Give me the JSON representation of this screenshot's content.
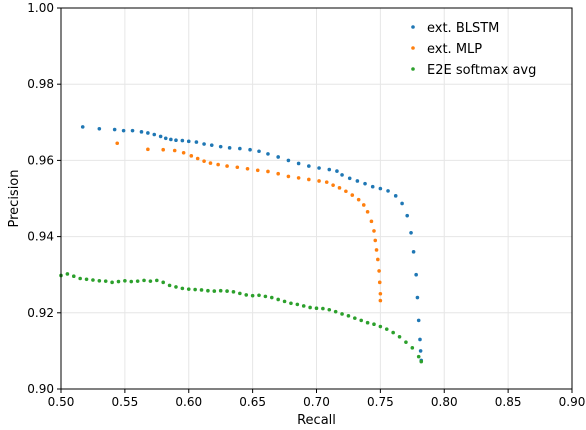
{
  "chart_data": {
    "type": "scatter",
    "xlabel": "Recall",
    "ylabel": "Precision",
    "xlim": [
      0.5,
      0.9
    ],
    "ylim": [
      0.9,
      1.0
    ],
    "xticks": [
      "0.50",
      "0.55",
      "0.60",
      "0.65",
      "0.70",
      "0.75",
      "0.80",
      "0.85",
      "0.90"
    ],
    "yticks": [
      "0.90",
      "0.92",
      "0.94",
      "0.96",
      "0.98",
      "1.00"
    ],
    "grid": true,
    "legend_position": "top-right",
    "series": [
      {
        "name": "ext. BLSTM",
        "color": "#1f77b4",
        "points": [
          [
            0.517,
            0.9688
          ],
          [
            0.53,
            0.9683
          ],
          [
            0.542,
            0.9681
          ],
          [
            0.549,
            0.9678
          ],
          [
            0.556,
            0.9678
          ],
          [
            0.563,
            0.9675
          ],
          [
            0.568,
            0.9672
          ],
          [
            0.573,
            0.9668
          ],
          [
            0.578,
            0.9663
          ],
          [
            0.582,
            0.9658
          ],
          [
            0.586,
            0.9655
          ],
          [
            0.59,
            0.9653
          ],
          [
            0.595,
            0.9652
          ],
          [
            0.6,
            0.965
          ],
          [
            0.606,
            0.9648
          ],
          [
            0.612,
            0.9643
          ],
          [
            0.618,
            0.964
          ],
          [
            0.625,
            0.9636
          ],
          [
            0.632,
            0.9633
          ],
          [
            0.64,
            0.9631
          ],
          [
            0.648,
            0.9628
          ],
          [
            0.655,
            0.9624
          ],
          [
            0.662,
            0.9617
          ],
          [
            0.67,
            0.9609
          ],
          [
            0.678,
            0.96
          ],
          [
            0.686,
            0.9592
          ],
          [
            0.694,
            0.9585
          ],
          [
            0.702,
            0.958
          ],
          [
            0.71,
            0.9576
          ],
          [
            0.716,
            0.9572
          ],
          [
            0.72,
            0.9562
          ],
          [
            0.726,
            0.9553
          ],
          [
            0.732,
            0.9546
          ],
          [
            0.738,
            0.9539
          ],
          [
            0.744,
            0.9531
          ],
          [
            0.75,
            0.9526
          ],
          [
            0.756,
            0.952
          ],
          [
            0.762,
            0.9507
          ],
          [
            0.767,
            0.9487
          ],
          [
            0.771,
            0.9455
          ],
          [
            0.774,
            0.941
          ],
          [
            0.776,
            0.936
          ],
          [
            0.778,
            0.93
          ],
          [
            0.779,
            0.924
          ],
          [
            0.78,
            0.918
          ],
          [
            0.781,
            0.913
          ],
          [
            0.7815,
            0.91
          ],
          [
            0.782,
            0.9075
          ]
        ]
      },
      {
        "name": "ext. MLP",
        "color": "#ff7f0e",
        "points": [
          [
            0.544,
            0.9645
          ],
          [
            0.568,
            0.9629
          ],
          [
            0.58,
            0.9628
          ],
          [
            0.589,
            0.9626
          ],
          [
            0.596,
            0.962
          ],
          [
            0.602,
            0.9612
          ],
          [
            0.607,
            0.9605
          ],
          [
            0.612,
            0.9598
          ],
          [
            0.617,
            0.9593
          ],
          [
            0.623,
            0.9589
          ],
          [
            0.63,
            0.9585
          ],
          [
            0.638,
            0.9582
          ],
          [
            0.646,
            0.9578
          ],
          [
            0.654,
            0.9574
          ],
          [
            0.662,
            0.9571
          ],
          [
            0.67,
            0.9565
          ],
          [
            0.678,
            0.9558
          ],
          [
            0.686,
            0.9554
          ],
          [
            0.694,
            0.955
          ],
          [
            0.702,
            0.9546
          ],
          [
            0.708,
            0.9543
          ],
          [
            0.713,
            0.9535
          ],
          [
            0.718,
            0.9528
          ],
          [
            0.723,
            0.9519
          ],
          [
            0.728,
            0.9509
          ],
          [
            0.733,
            0.9497
          ],
          [
            0.737,
            0.9483
          ],
          [
            0.74,
            0.9465
          ],
          [
            0.743,
            0.944
          ],
          [
            0.745,
            0.9415
          ],
          [
            0.746,
            0.939
          ],
          [
            0.747,
            0.9365
          ],
          [
            0.748,
            0.934
          ],
          [
            0.749,
            0.931
          ],
          [
            0.7495,
            0.928
          ],
          [
            0.75,
            0.925
          ],
          [
            0.75,
            0.9232
          ]
        ]
      },
      {
        "name": "E2E softmax avg",
        "color": "#2ca02c",
        "points": [
          [
            0.5,
            0.9298
          ],
          [
            0.505,
            0.9302
          ],
          [
            0.51,
            0.9296
          ],
          [
            0.515,
            0.929
          ],
          [
            0.52,
            0.9288
          ],
          [
            0.525,
            0.9286
          ],
          [
            0.53,
            0.9284
          ],
          [
            0.535,
            0.9283
          ],
          [
            0.54,
            0.928
          ],
          [
            0.545,
            0.9282
          ],
          [
            0.55,
            0.9284
          ],
          [
            0.555,
            0.9282
          ],
          [
            0.56,
            0.9283
          ],
          [
            0.565,
            0.9285
          ],
          [
            0.57,
            0.9283
          ],
          [
            0.575,
            0.9285
          ],
          [
            0.58,
            0.928
          ],
          [
            0.585,
            0.9272
          ],
          [
            0.59,
            0.9268
          ],
          [
            0.595,
            0.9264
          ],
          [
            0.6,
            0.9262
          ],
          [
            0.605,
            0.9261
          ],
          [
            0.61,
            0.926
          ],
          [
            0.615,
            0.9258
          ],
          [
            0.62,
            0.9257
          ],
          [
            0.625,
            0.9258
          ],
          [
            0.63,
            0.9257
          ],
          [
            0.635,
            0.9255
          ],
          [
            0.64,
            0.9251
          ],
          [
            0.645,
            0.9247
          ],
          [
            0.65,
            0.9245
          ],
          [
            0.655,
            0.9246
          ],
          [
            0.66,
            0.9243
          ],
          [
            0.665,
            0.924
          ],
          [
            0.67,
            0.9235
          ],
          [
            0.675,
            0.923
          ],
          [
            0.68,
            0.9225
          ],
          [
            0.685,
            0.9222
          ],
          [
            0.69,
            0.9218
          ],
          [
            0.695,
            0.9214
          ],
          [
            0.7,
            0.9212
          ],
          [
            0.705,
            0.9211
          ],
          [
            0.71,
            0.9208
          ],
          [
            0.715,
            0.9203
          ],
          [
            0.72,
            0.9197
          ],
          [
            0.725,
            0.9192
          ],
          [
            0.73,
            0.9186
          ],
          [
            0.735,
            0.918
          ],
          [
            0.74,
            0.9174
          ],
          [
            0.745,
            0.917
          ],
          [
            0.75,
            0.9164
          ],
          [
            0.755,
            0.9157
          ],
          [
            0.76,
            0.9148
          ],
          [
            0.765,
            0.9137
          ],
          [
            0.77,
            0.9123
          ],
          [
            0.775,
            0.9108
          ],
          [
            0.78,
            0.9085
          ],
          [
            0.782,
            0.9072
          ]
        ]
      }
    ]
  }
}
